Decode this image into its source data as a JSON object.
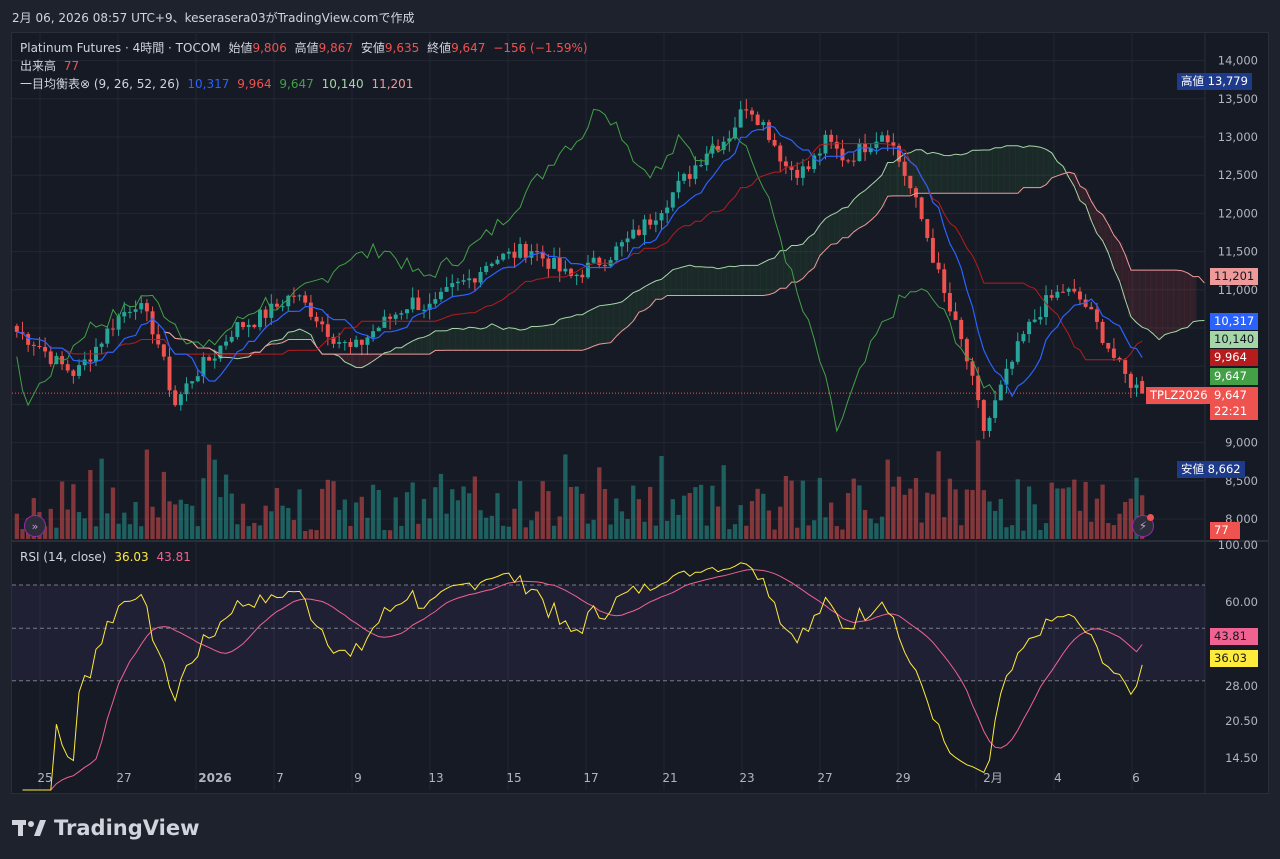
{
  "header": {
    "title_line": "2月 06, 2026 08:57 UTC+9、keserasera03がTradingView.comで作成"
  },
  "legend": {
    "symbol": "Platinum Futures · 4時間 · TOCOM",
    "open_label": "始値",
    "open": "9,806",
    "high_label": "高値",
    "high": "9,867",
    "low_label": "安値",
    "low": "9,635",
    "close_label": "終値",
    "close": "9,647",
    "change": "−156 (−1.59%)",
    "volume_label": "出来高",
    "volume": "77",
    "ichimoku_label": "一目均衡表⊗ (9, 26, 52, 26)",
    "ichimoku_values": [
      "10,317",
      "9,964",
      "9,647",
      "10,140",
      "11,201"
    ],
    "rsi_label": "RSI (14, close)",
    "rsi_value": "36.03",
    "rsi_ma": "43.81"
  },
  "price_axis_labels": [
    "14,000",
    "13,500",
    "13,000",
    "12,500",
    "12,000",
    "11,500",
    "11,000",
    "9,000",
    "8,500",
    "8,000"
  ],
  "rsi_axis_labels": [
    "100.00",
    "60.00",
    "28.00",
    "20.50",
    "14.50"
  ],
  "time_axis_labels": [
    "25",
    "27",
    "2026",
    "7",
    "9",
    "13",
    "15",
    "17",
    "21",
    "23",
    "27",
    "29",
    "2月",
    "4",
    "6"
  ],
  "price_tags": {
    "high_label": "高値",
    "high_value": "13,779",
    "low_label": "安値",
    "low_value": "8,662",
    "senkou_b": "11,201",
    "conversion": "10,317",
    "senkou_a": "10,140",
    "base": "9,964",
    "lagging": "9,647",
    "symbol_tag": "TPLZ2026",
    "last_price": "9,647",
    "countdown": "22:21",
    "volume_tag": "77",
    "rsi_ma_tag": "43.81",
    "rsi_tag": "36.03"
  },
  "colors": {
    "up": "#26a69a",
    "down": "#ef5350",
    "conversion": "#2962ff",
    "base": "#b71c1c",
    "lagging": "#43a047",
    "senkou_a": "#a5d6a7",
    "senkou_b": "#ef9a9a",
    "rsi": "#ffeb3b",
    "rsi_ma": "#e91e63"
  },
  "footer": {
    "brand": "TradingView"
  },
  "chart_data": {
    "type": "candlestick",
    "symbol": "Platinum Futures",
    "timeframe": "4時間",
    "exchange": "TOCOM",
    "ohlc_last": {
      "open": 9806,
      "high": 9867,
      "low": 9635,
      "close": 9647
    },
    "visible_high": 13779,
    "visible_low": 8662,
    "price_range": [
      7800,
      14100
    ],
    "close_series_approx": [
      10450,
      10300,
      10050,
      9900,
      10250,
      10600,
      10850,
      10450,
      9500,
      9900,
      10150,
      10500,
      10600,
      10750,
      10950,
      10700,
      10400,
      10200,
      10450,
      10650,
      10850,
      10750,
      11000,
      11150,
      11400,
      11450,
      11550,
      11350,
      11150,
      11300,
      11450,
      11650,
      11900,
      12200,
      12500,
      12850,
      13000,
      13450,
      13100,
      12600,
      12550,
      12950,
      12700,
      12900,
      13100,
      12500,
      11800,
      10900,
      10200,
      9150,
      9800,
      10400,
      10800,
      11000,
      10850,
      10400,
      9900,
      9647
    ],
    "ichimoku": {
      "conversion": 10317,
      "base": 9964,
      "lagging": 9647,
      "senkou_a": 10140,
      "senkou_b": 11201
    },
    "rsi": {
      "period": 14,
      "value": 36.03,
      "ma": 43.81,
      "range": [
        0,
        100
      ],
      "upper_band": 70,
      "lower_band": 30
    },
    "volume_last": 77
  }
}
